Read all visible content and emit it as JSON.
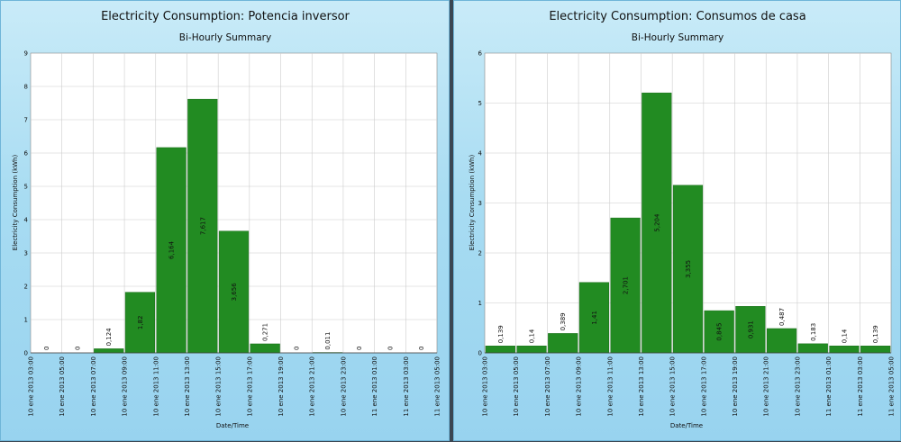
{
  "colors": {
    "bar": "#228b22",
    "bar_edge": "#1a6e1a",
    "plot_bg": "#ffffff",
    "grid": "#cccccc"
  },
  "chart_data": [
    {
      "type": "bar",
      "title": "Electricity Consumption: Potencia inversor",
      "subtitle": "Bi-Hourly Summary",
      "xlabel": "Date/Time",
      "ylabel": "Electricity Consumption (kWh)",
      "ylim": [
        0,
        9
      ],
      "yticks": [
        "0",
        "1",
        "2",
        "3",
        "4",
        "5",
        "6",
        "7",
        "8",
        "9"
      ],
      "xticks": [
        "10 ene 2013 03:00",
        "10 ene 2013 05:00",
        "10 ene 2013 07:00",
        "10 ene 2013 09:00",
        "10 ene 2013 11:00",
        "10 ene 2013 13:00",
        "10 ene 2013 15:00",
        "10 ene 2013 17:00",
        "10 ene 2013 19:00",
        "10 ene 2013 21:00",
        "10 ene 2013 23:00",
        "11 ene 2013 01:00",
        "11 ene 2013 03:00",
        "11 ene 2013 05:00"
      ],
      "values": [
        0,
        0,
        0.124,
        1.82,
        6.164,
        7.617,
        3.656,
        0.271,
        0,
        0.011,
        0,
        0,
        0
      ],
      "labels": [
        "0",
        "0",
        "0,124",
        "1,82",
        "6,164",
        "7,617",
        "3,656",
        "0,271",
        "0",
        "0,011",
        "0",
        "0",
        "0"
      ],
      "grid": true
    },
    {
      "type": "bar",
      "title": "Electricity Consumption: Consumos de casa",
      "subtitle": "Bi-Hourly Summary",
      "xlabel": "Date/Time",
      "ylabel": "Electricity Consumption (kWh)",
      "ylim": [
        0,
        6
      ],
      "yticks": [
        "0",
        "1",
        "2",
        "3",
        "4",
        "5",
        "6"
      ],
      "xticks": [
        "10 ene 2013 03:00",
        "10 ene 2013 05:00",
        "10 ene 2013 07:00",
        "10 ene 2013 09:00",
        "10 ene 2013 11:00",
        "10 ene 2013 13:00",
        "10 ene 2013 15:00",
        "10 ene 2013 17:00",
        "10 ene 2013 19:00",
        "10 ene 2013 21:00",
        "10 ene 2013 23:00",
        "11 ene 2013 01:00",
        "11 ene 2013 03:00",
        "11 ene 2013 05:00"
      ],
      "values": [
        0.139,
        0.14,
        0.389,
        1.41,
        2.701,
        5.204,
        3.355,
        0.845,
        0.931,
        0.487,
        0.183,
        0.14,
        0.139
      ],
      "labels": [
        "0,139",
        "0,14",
        "0,389",
        "1,41",
        "2,701",
        "5,204",
        "3,355",
        "0,845",
        "0,931",
        "0,487",
        "0,183",
        "0,14",
        "0,139"
      ],
      "grid": true
    }
  ]
}
